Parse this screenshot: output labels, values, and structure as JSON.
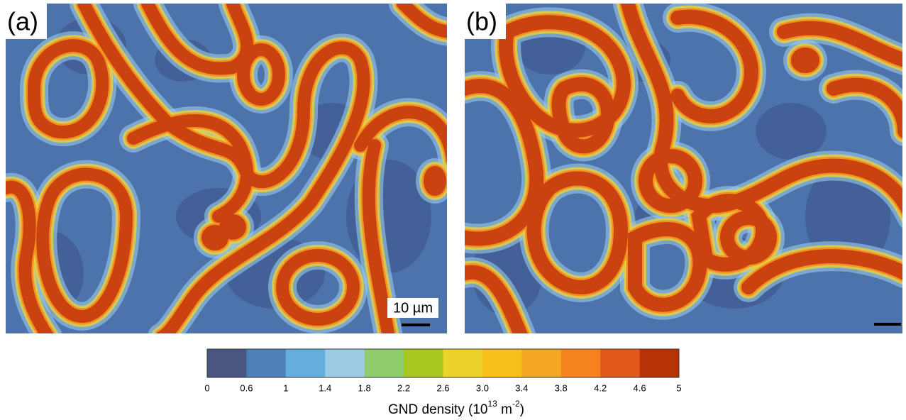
{
  "panels": [
    {
      "label": "(a)",
      "scale_bar": "10 µm"
    },
    {
      "label": "(b)"
    }
  ],
  "colorbar": {
    "colors": [
      "#4a5580",
      "#4e7fb6",
      "#65aedb",
      "#9dcbe6",
      "#8ecb6a",
      "#a8c820",
      "#ecd22a",
      "#f7bf1a",
      "#f5a623",
      "#f5821f",
      "#e0581a",
      "#b83208"
    ],
    "ticks": [
      "0",
      "0.6",
      "1",
      "1.4",
      "1.8",
      "2.2",
      "2.6",
      "3.0",
      "3.4",
      "3.8",
      "4.2",
      "4.6",
      "5"
    ],
    "label": {
      "text": "GND density (10",
      "sup1": "13",
      "mid": " m",
      "sup2": "-2",
      "end": ")"
    }
  }
}
